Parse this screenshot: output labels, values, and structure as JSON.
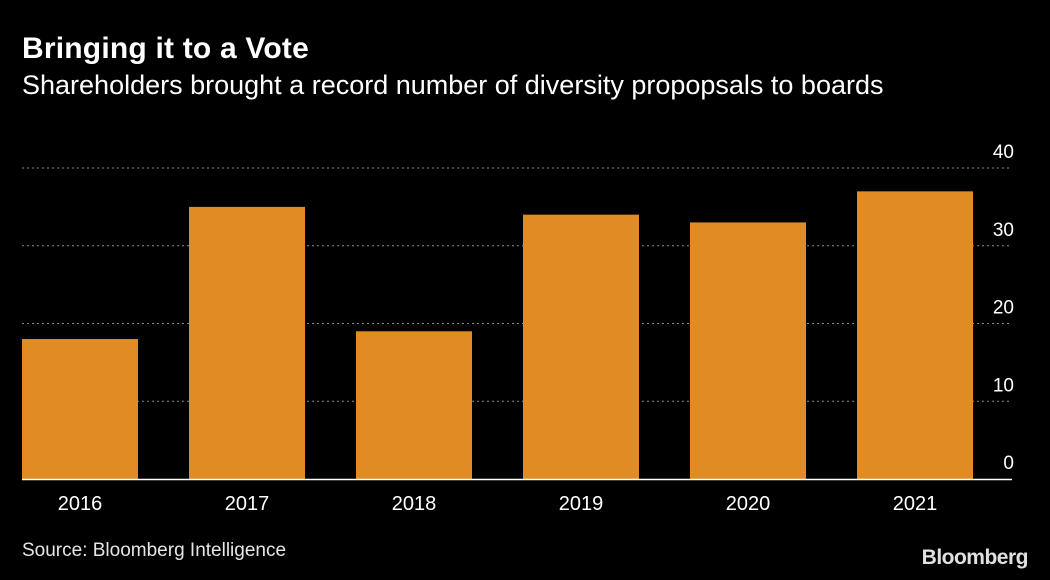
{
  "title": "Bringing it to a Vote",
  "subtitle": "Shareholders brought a record number of diversity propopsals to boards",
  "source": "Source: Bloomberg Intelligence",
  "brand": "Bloomberg",
  "colors": {
    "background": "#000000",
    "bar": "#E08B24",
    "text": "#FFFFFF",
    "grid": "#8a8a8a"
  },
  "chart_data": {
    "type": "bar",
    "categories": [
      "2016",
      "2017",
      "2018",
      "2019",
      "2020",
      "2021"
    ],
    "values": [
      18,
      35,
      19,
      34,
      33,
      37
    ],
    "title": "Bringing it to a Vote",
    "xlabel": "",
    "ylabel": "",
    "ylim": [
      0,
      40
    ],
    "yticks": [
      0,
      10,
      20,
      30,
      40
    ],
    "ytick_labels": [
      "0",
      "10",
      "20",
      "30",
      "40"
    ],
    "grid": true,
    "y_axis_position": "right"
  }
}
